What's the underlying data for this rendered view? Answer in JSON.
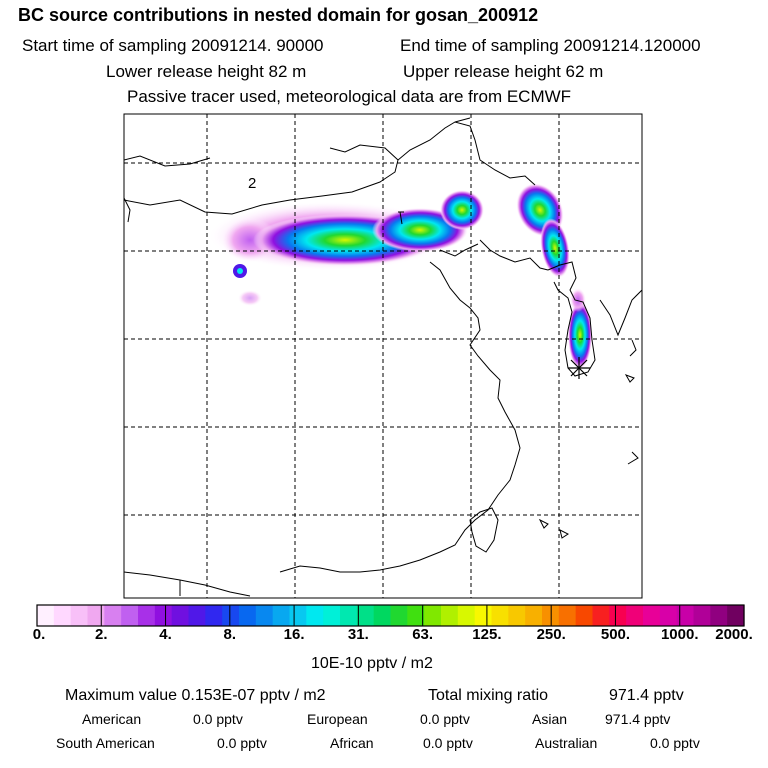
{
  "title": "BC  source contributions in nested domain for gosan_200912",
  "sampling": {
    "start": "Start time of sampling 20091214. 90000",
    "end": "End time of sampling 20091214.120000"
  },
  "release": {
    "lower": "Lower release height   82 m",
    "upper": "Upper release height   62 m"
  },
  "tracer_note": "Passive tracer used, meteorological data are from ECMWF",
  "map": {
    "labels": {
      "region_2": "2",
      "region_1": "1"
    },
    "receptor_marker": "star-icon"
  },
  "colorbar": {
    "colors": [
      "#fff0ff",
      "#ffd8ff",
      "#f8c0f8",
      "#f0a8f0",
      "#d880f0",
      "#c060f0",
      "#a830e8",
      "#9010e0",
      "#7010e0",
      "#5018e8",
      "#3028f0",
      "#1848f0",
      "#0868f0",
      "#0888f0",
      "#08a8f0",
      "#08c8f0",
      "#00e8f0",
      "#00f0d8",
      "#00e8b0",
      "#00e088",
      "#00d860",
      "#20d830",
      "#40e010",
      "#80e800",
      "#b0f000",
      "#d8f800",
      "#f8f800",
      "#f8e000",
      "#f8c800",
      "#f8b000",
      "#f89000",
      "#f87000",
      "#f84800",
      "#f82020",
      "#f80050",
      "#f00078",
      "#e80098",
      "#d800a8",
      "#c800a8",
      "#b00098",
      "#900080",
      "#700060"
    ],
    "ticks": [
      "0.",
      "2.",
      "4.",
      "8.",
      "16.",
      "31.",
      "63.",
      "125.",
      "250.",
      "500.",
      "1000.",
      "2000."
    ],
    "unit": "10E-10 pptv / m2"
  },
  "stats": {
    "max_label": "Maximum value  0.153E-07 pptv / m2",
    "total_label": "Total mixing ratio",
    "total_value": "971.4 pptv",
    "regions": [
      {
        "name": "American",
        "value": "0.0 pptv"
      },
      {
        "name": "European",
        "value": "0.0 pptv"
      },
      {
        "name": "Asian",
        "value": "971.4 pptv"
      },
      {
        "name": "South American",
        "value": "0.0 pptv"
      },
      {
        "name": "African",
        "value": "0.0 pptv"
      },
      {
        "name": "Australian",
        "value": "0.0 pptv"
      }
    ]
  }
}
